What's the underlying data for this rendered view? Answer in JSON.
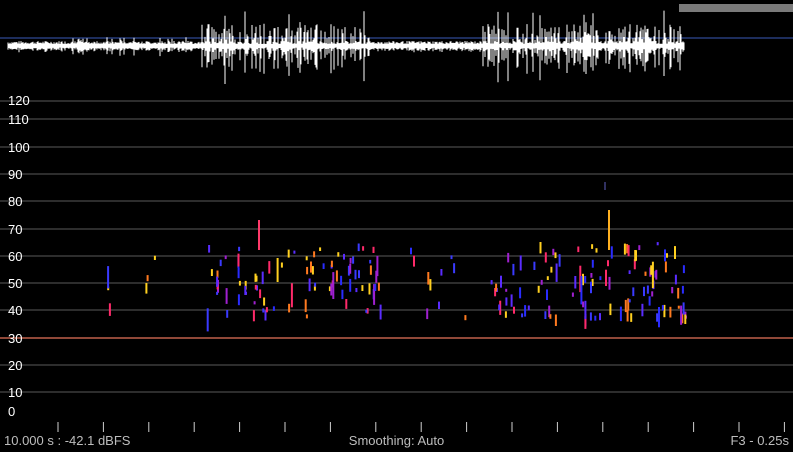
{
  "status": {
    "left": "10.000 s : -42.1 dBFS",
    "center": "Smoothing: Auto",
    "right": "F3 - 0.25s"
  },
  "y_axis": {
    "ticks": [
      "120",
      "110",
      "100",
      "90",
      "80",
      "70",
      "60",
      "50",
      "40",
      "30",
      "20",
      "10",
      "0"
    ]
  },
  "colors": {
    "background": "#000000",
    "grid": "#5a5a5a",
    "threshold_line": "#c0604a",
    "waveform": "#ffffff",
    "waveform_axis": "#3a5ab8"
  },
  "threshold_value": 30
}
